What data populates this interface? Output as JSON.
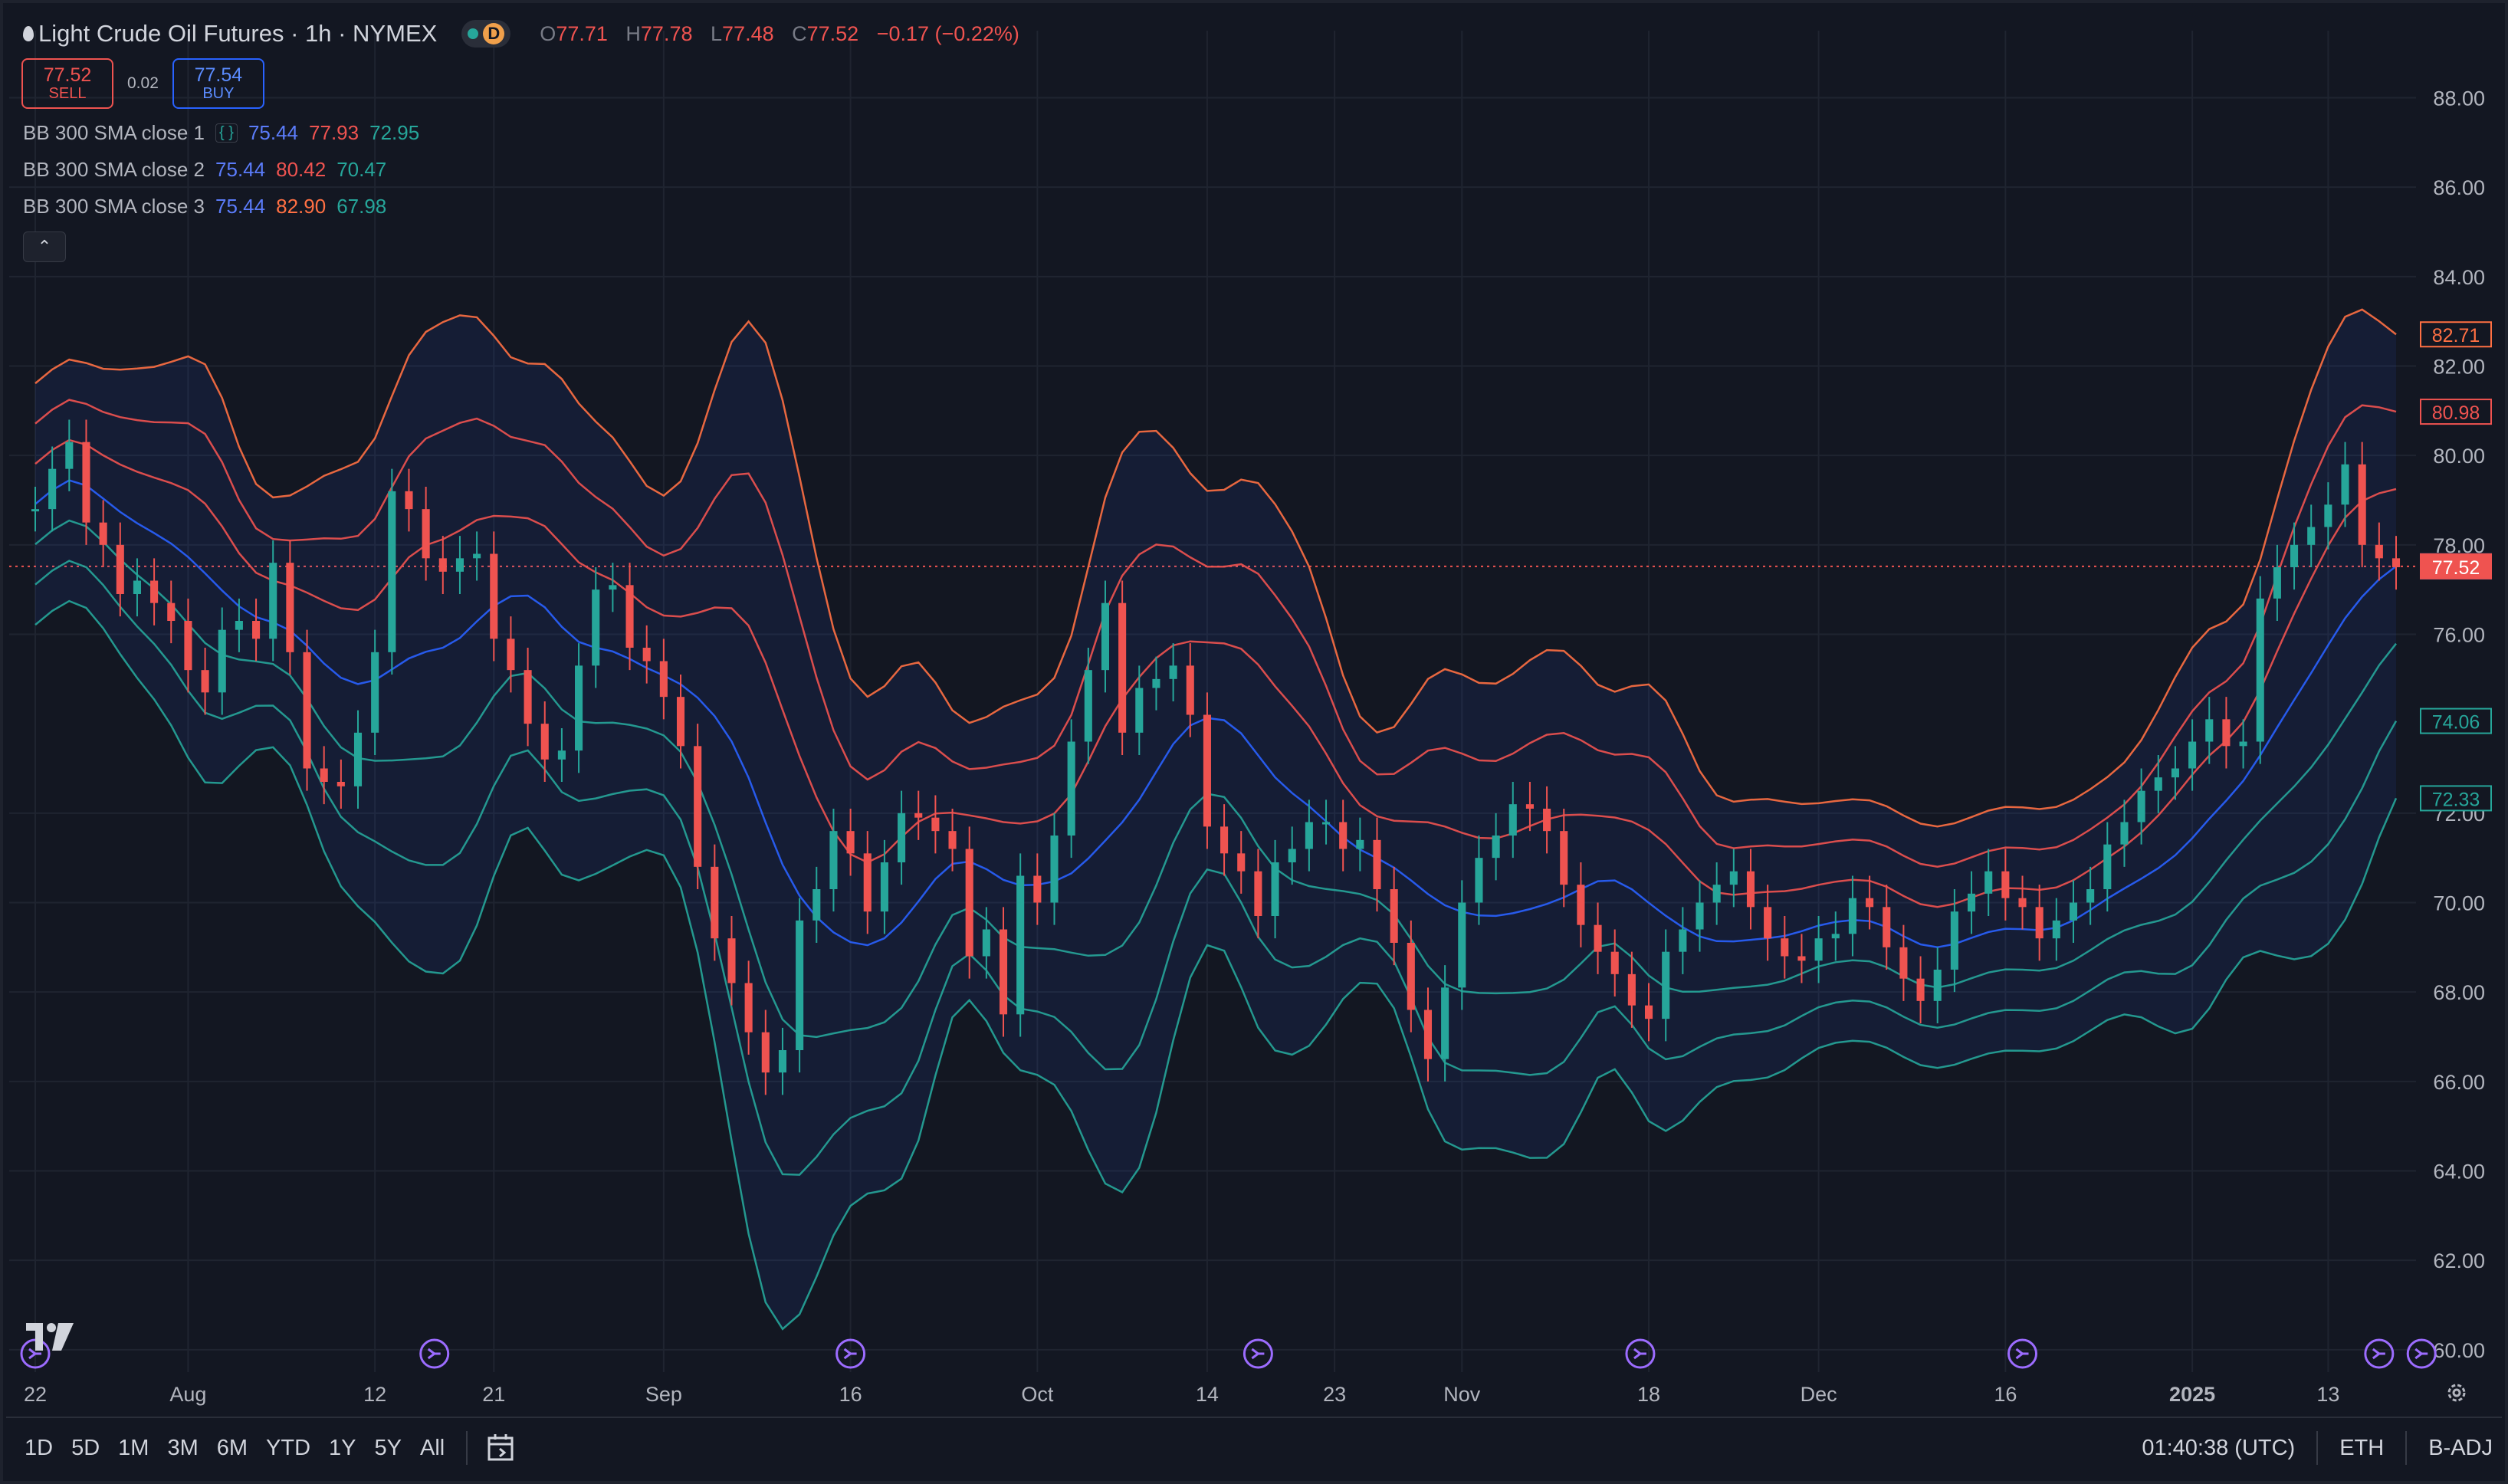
{
  "header": {
    "symbol_title": "Light Crude Oil Futures · 1h · NYMEX",
    "badge": "D",
    "ohlc": {
      "o_label": "O",
      "o": "77.71",
      "h_label": "H",
      "h": "77.78",
      "l_label": "L",
      "l": "77.48",
      "c_label": "C",
      "c": "77.52",
      "change": "−0.17 (−0.22%)"
    }
  },
  "trade": {
    "sell_price": "77.52",
    "sell_label": "SELL",
    "spread": "0.02",
    "buy_price": "77.54",
    "buy_label": "BUY"
  },
  "indicators": [
    {
      "name": "BB 300 SMA close 1",
      "basis": "75.44",
      "upper": "77.93",
      "lower": "72.95"
    },
    {
      "name": "BB 300 SMA close 2",
      "basis": "75.44",
      "upper": "80.42",
      "lower": "70.47"
    },
    {
      "name": "BB 300 SMA close 3",
      "basis": "75.44",
      "upper": "82.90",
      "lower": "67.98"
    }
  ],
  "bottom_bar": {
    "ranges": [
      "1D",
      "5D",
      "1M",
      "3M",
      "6M",
      "YTD",
      "1Y",
      "5Y",
      "All"
    ],
    "clock": "01:40:38 (UTC)",
    "session": "ETH",
    "adjust": "B-ADJ"
  },
  "colors": {
    "background": "#131722",
    "basis": "#2962ff",
    "band1": "#26a69a",
    "band2": "#ef5350",
    "band3": "#ff7043",
    "up": "#26a69a",
    "down": "#ef5350"
  },
  "chart_data": {
    "type": "candlestick",
    "ylim": [
      59.5,
      89.5
    ],
    "y_ticks": [
      60,
      62,
      64,
      66,
      68,
      70,
      72,
      76,
      78,
      80,
      82,
      84,
      86,
      88
    ],
    "y_tick_labels": [
      "60.00",
      "62.00",
      "64.00",
      "66.00",
      "68.00",
      "70.00",
      "72.00",
      "76.00",
      "78.00",
      "80.00",
      "82.00",
      "84.00",
      "86.00",
      "88.00"
    ],
    "x_ticks": [
      {
        "label": "22",
        "pos": 0.0
      },
      {
        "label": "Aug",
        "pos": 9.0
      },
      {
        "label": "12",
        "pos": 20.0
      },
      {
        "label": "21",
        "pos": 27.0
      },
      {
        "label": "Sep",
        "pos": 37.0
      },
      {
        "label": "16",
        "pos": 48.0
      },
      {
        "label": "Oct",
        "pos": 59.0
      },
      {
        "label": "14",
        "pos": 69.0
      },
      {
        "label": "23",
        "pos": 76.5
      },
      {
        "label": "Nov",
        "pos": 84.0
      },
      {
        "label": "18",
        "pos": 95.0
      },
      {
        "label": "Dec",
        "pos": 105.0
      },
      {
        "label": "16",
        "pos": 116.0
      },
      {
        "label": "2025",
        "pos": 127.0
      },
      {
        "label": "13",
        "pos": 135.0
      }
    ],
    "event_markers_pos": [
      0.0,
      23.5,
      48.0,
      72.0,
      94.5,
      117.0,
      138.0,
      140.5
    ],
    "close": [
      78.8,
      79.7,
      80.3,
      78.5,
      78.0,
      76.9,
      77.2,
      76.7,
      76.3,
      75.2,
      74.7,
      76.1,
      76.3,
      75.9,
      77.6,
      75.6,
      73.0,
      72.7,
      72.6,
      73.8,
      75.6,
      79.2,
      78.8,
      77.7,
      77.4,
      77.7,
      77.8,
      75.9,
      75.2,
      74.0,
      73.2,
      73.4,
      75.3,
      77.0,
      77.1,
      75.7,
      75.4,
      74.6,
      73.5,
      70.8,
      69.2,
      68.2,
      67.1,
      66.2,
      66.7,
      69.6,
      70.3,
      71.6,
      71.1,
      69.8,
      70.9,
      72.0,
      71.9,
      71.6,
      71.2,
      68.8,
      69.4,
      67.5,
      70.6,
      70.0,
      71.5,
      73.6,
      75.2,
      76.7,
      73.8,
      74.8,
      75.0,
      75.3,
      74.2,
      71.7,
      71.1,
      70.7,
      69.7,
      70.9,
      71.2,
      71.8,
      71.8,
      71.2,
      71.4,
      70.3,
      69.1,
      67.6,
      66.5,
      68.1,
      70.0,
      71.0,
      71.5,
      72.2,
      72.1,
      71.6,
      70.4,
      69.5,
      68.9,
      68.4,
      67.7,
      67.4,
      68.9,
      69.4,
      70.0,
      70.4,
      70.7,
      69.9,
      69.2,
      68.8,
      68.7,
      69.2,
      69.3,
      70.1,
      69.9,
      69.0,
      68.3,
      67.8,
      68.5,
      69.8,
      70.2,
      70.7,
      70.1,
      69.9,
      69.2,
      69.6,
      70.0,
      70.3,
      71.3,
      71.8,
      72.5,
      72.8,
      73.0,
      73.6,
      74.1,
      73.5,
      73.6,
      76.8,
      77.5,
      78.0,
      78.4,
      78.9,
      79.8,
      78.0,
      77.7,
      77.5
    ]
  }
}
